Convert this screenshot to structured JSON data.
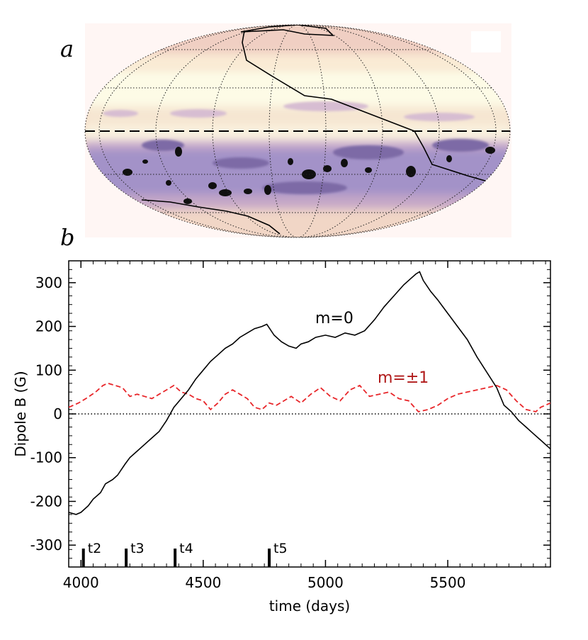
{
  "panels": {
    "a_label": "a",
    "b_label": "b"
  },
  "map": {
    "type": "mollweide-projection",
    "colormap": [
      "#fdfbe8",
      "#f5dcc0",
      "#d9b5c9",
      "#a091c7",
      "#5a4d7a",
      "#0a0a0a"
    ]
  },
  "chart_data": {
    "type": "line",
    "xlabel": "time (days)",
    "ylabel": "Dipole B (G)",
    "xlim": [
      3950,
      5920
    ],
    "ylim": [
      -350,
      350
    ],
    "xticks": [
      4000,
      4500,
      5000,
      5500
    ],
    "yticks": [
      300,
      200,
      100,
      0,
      -100,
      -200,
      -300
    ],
    "zero_line": true,
    "series": [
      {
        "name": "m=0",
        "label": "m=0",
        "color": "#000000",
        "style": "solid",
        "x": [
          3950,
          3980,
          4000,
          4030,
          4050,
          4080,
          4100,
          4130,
          4150,
          4180,
          4200,
          4230,
          4260,
          4290,
          4320,
          4350,
          4380,
          4410,
          4440,
          4470,
          4500,
          4530,
          4560,
          4590,
          4620,
          4650,
          4680,
          4710,
          4740,
          4760,
          4790,
          4820,
          4850,
          4880,
          4900,
          4930,
          4960,
          5000,
          5040,
          5080,
          5120,
          5160,
          5200,
          5240,
          5280,
          5320,
          5350,
          5370,
          5385,
          5400,
          5430,
          5460,
          5500,
          5540,
          5580,
          5620,
          5660,
          5700,
          5730,
          5760,
          5790,
          5820,
          5850,
          5880,
          5920
        ],
        "y": [
          -225,
          -230,
          -225,
          -210,
          -195,
          -180,
          -160,
          -150,
          -140,
          -115,
          -100,
          -85,
          -70,
          -55,
          -40,
          -15,
          15,
          35,
          55,
          80,
          100,
          120,
          135,
          150,
          160,
          175,
          185,
          195,
          200,
          205,
          180,
          165,
          155,
          150,
          160,
          165,
          175,
          180,
          175,
          185,
          180,
          190,
          215,
          245,
          270,
          295,
          310,
          320,
          325,
          305,
          280,
          260,
          230,
          200,
          170,
          130,
          95,
          60,
          20,
          5,
          -15,
          -30,
          -45,
          -60,
          -80
        ]
      },
      {
        "name": "m=±1",
        "label": "m=±1",
        "color": "#e8262a",
        "label_color": "#b01a1a",
        "style": "dashed",
        "x": [
          3950,
          3990,
          4020,
          4060,
          4090,
          4110,
          4140,
          4170,
          4200,
          4230,
          4260,
          4290,
          4320,
          4350,
          4380,
          4410,
          4440,
          4470,
          4500,
          4530,
          4560,
          4590,
          4620,
          4650,
          4680,
          4710,
          4740,
          4770,
          4800,
          4830,
          4860,
          4900,
          4940,
          4980,
          5020,
          5060,
          5100,
          5140,
          5180,
          5220,
          5260,
          5300,
          5340,
          5380,
          5420,
          5460,
          5500,
          5540,
          5580,
          5620,
          5660,
          5700,
          5740,
          5780,
          5820,
          5860,
          5880,
          5900,
          5920
        ],
        "y": [
          15,
          25,
          35,
          50,
          65,
          70,
          65,
          60,
          40,
          45,
          40,
          35,
          45,
          55,
          65,
          50,
          45,
          35,
          30,
          10,
          25,
          45,
          55,
          45,
          35,
          15,
          10,
          25,
          20,
          30,
          40,
          25,
          45,
          60,
          40,
          30,
          55,
          65,
          40,
          45,
          50,
          35,
          30,
          5,
          10,
          20,
          35,
          45,
          50,
          55,
          60,
          65,
          55,
          30,
          10,
          5,
          15,
          20,
          25
        ]
      }
    ],
    "markers": [
      {
        "x": 4010,
        "label": "t2"
      },
      {
        "x": 4185,
        "label": "t3"
      },
      {
        "x": 4385,
        "label": "t4"
      },
      {
        "x": 4770,
        "label": "t5"
      }
    ]
  }
}
